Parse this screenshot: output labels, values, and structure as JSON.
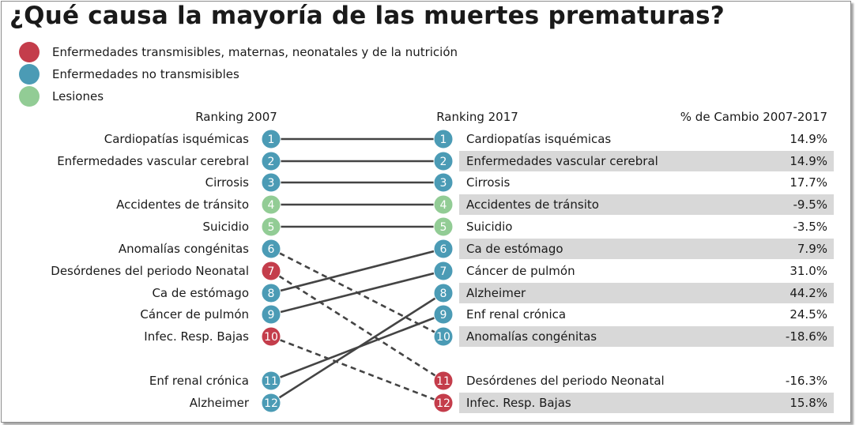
{
  "title": "¿Qué causa la mayoría de las muertes prematuras?",
  "colors": {
    "communicable": "#c43d4b",
    "noncommunicable": "#4b9bb5",
    "injuries": "#92cc95",
    "row_shade": "#d8d8d8",
    "line": "#444444"
  },
  "legend": [
    {
      "label": "Enfermedades transmisibles, maternas, neonatales y de la nutrición",
      "group": "communicable"
    },
    {
      "label": "Enfermedades no transmisibles",
      "group": "noncommunicable"
    },
    {
      "label": "Lesiones",
      "group": "injuries"
    }
  ],
  "headers": {
    "rank_2007": "Ranking 2007",
    "rank_2017": "Ranking 2017",
    "change": "% de Cambio 2007-2017"
  },
  "chart_data": {
    "type": "slope",
    "left": [
      {
        "rank": 1,
        "label": "Cardiopatías isquémicas",
        "group": "noncommunicable"
      },
      {
        "rank": 2,
        "label": "Enfermedades vascular cerebral",
        "group": "noncommunicable"
      },
      {
        "rank": 3,
        "label": "Cirrosis",
        "group": "noncommunicable"
      },
      {
        "rank": 4,
        "label": "Accidentes de tránsito",
        "group": "injuries"
      },
      {
        "rank": 5,
        "label": "Suicidio",
        "group": "injuries"
      },
      {
        "rank": 6,
        "label": "Anomalías congénitas",
        "group": "noncommunicable"
      },
      {
        "rank": 7,
        "label": "Desórdenes del periodo Neonatal",
        "group": "communicable"
      },
      {
        "rank": 8,
        "label": "Ca de estómago",
        "group": "noncommunicable"
      },
      {
        "rank": 9,
        "label": "Cáncer de pulmón",
        "group": "noncommunicable"
      },
      {
        "rank": 10,
        "label": "Infec. Resp. Bajas",
        "group": "communicable"
      },
      {
        "rank": 11,
        "label": "Enf renal crónica",
        "group": "noncommunicable"
      },
      {
        "rank": 12,
        "label": "Alzheimer",
        "group": "noncommunicable"
      }
    ],
    "right": [
      {
        "rank": 1,
        "label": "Cardiopatías isquémicas",
        "group": "noncommunicable",
        "change": "14.9%",
        "shaded": false
      },
      {
        "rank": 2,
        "label": "Enfermedades vascular cerebral",
        "group": "noncommunicable",
        "change": "14.9%",
        "shaded": true
      },
      {
        "rank": 3,
        "label": "Cirrosis",
        "group": "noncommunicable",
        "change": "17.7%",
        "shaded": false
      },
      {
        "rank": 4,
        "label": "Accidentes de tránsito",
        "group": "injuries",
        "change": "-9.5%",
        "shaded": true
      },
      {
        "rank": 5,
        "label": "Suicidio",
        "group": "injuries",
        "change": "-3.5%",
        "shaded": false
      },
      {
        "rank": 6,
        "label": "Ca de estómago",
        "group": "noncommunicable",
        "change": "7.9%",
        "shaded": true
      },
      {
        "rank": 7,
        "label": "Cáncer de pulmón",
        "group": "noncommunicable",
        "change": "31.0%",
        "shaded": false
      },
      {
        "rank": 8,
        "label": "Alzheimer",
        "group": "noncommunicable",
        "change": "44.2%",
        "shaded": true
      },
      {
        "rank": 9,
        "label": "Enf renal crónica",
        "group": "noncommunicable",
        "change": "24.5%",
        "shaded": false
      },
      {
        "rank": 10,
        "label": "Anomalías congénitas",
        "group": "noncommunicable",
        "change": "-18.6%",
        "shaded": true
      },
      {
        "rank": 11,
        "label": "Desórdenes del periodo Neonatal",
        "group": "communicable",
        "change": "-16.3%",
        "shaded": false
      },
      {
        "rank": 12,
        "label": "Infec. Resp. Bajas",
        "group": "communicable",
        "change": "15.8%",
        "shaded": true
      }
    ],
    "links": [
      {
        "from": 1,
        "to": 1,
        "style": "solid"
      },
      {
        "from": 2,
        "to": 2,
        "style": "solid"
      },
      {
        "from": 3,
        "to": 3,
        "style": "solid"
      },
      {
        "from": 4,
        "to": 4,
        "style": "solid"
      },
      {
        "from": 5,
        "to": 5,
        "style": "solid"
      },
      {
        "from": 6,
        "to": 10,
        "style": "dashed"
      },
      {
        "from": 7,
        "to": 11,
        "style": "dashed"
      },
      {
        "from": 8,
        "to": 6,
        "style": "solid"
      },
      {
        "from": 9,
        "to": 7,
        "style": "solid"
      },
      {
        "from": 10,
        "to": 12,
        "style": "dashed"
      },
      {
        "from": 11,
        "to": 9,
        "style": "solid"
      },
      {
        "from": 12,
        "to": 8,
        "style": "solid"
      }
    ]
  }
}
